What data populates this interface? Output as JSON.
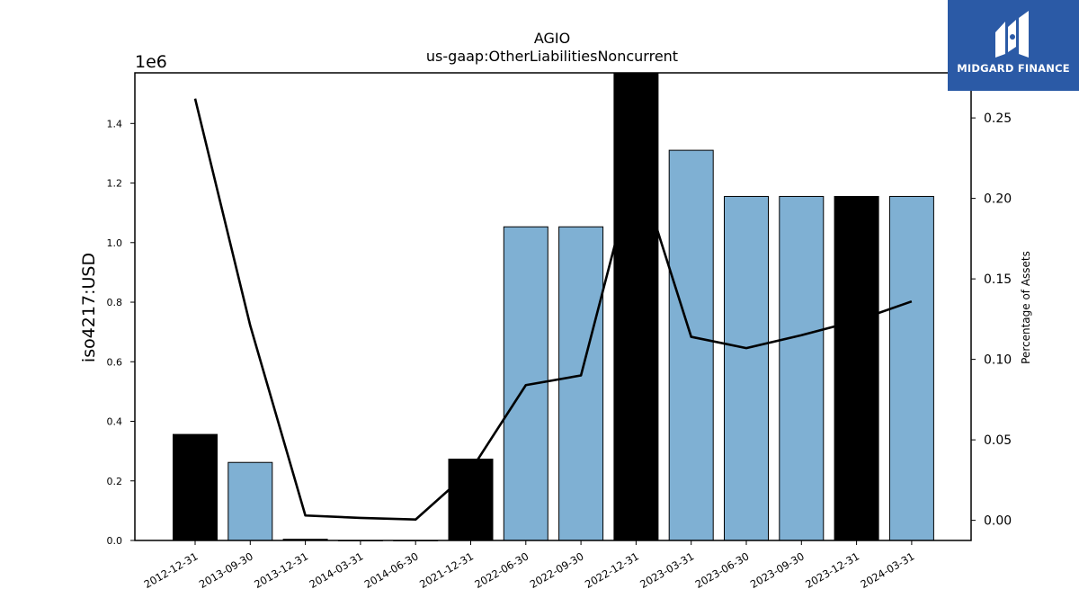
{
  "chart_data": {
    "type": "bar",
    "title": "AGIO",
    "subtitle": "us-gaap:OtherLiabilitiesNoncurrent",
    "ylabel": "iso4217:USD",
    "y2label": "Percentage of Assets",
    "y_offset_label": "1e6",
    "ylim": [
      0,
      1570000
    ],
    "y2lim": [
      -0.0125,
      0.278
    ],
    "yticks": [
      "0.0",
      "0.2",
      "0.4",
      "0.6",
      "0.8",
      "1.0",
      "1.2",
      "1.4"
    ],
    "y2ticks": [
      "0.00",
      "0.05",
      "0.10",
      "0.15",
      "0.20",
      "0.25"
    ],
    "categories": [
      "2012-12-31",
      "2013-09-30",
      "2013-12-31",
      "2014-03-31",
      "2014-06-30",
      "2021-12-31",
      "2022-06-30",
      "2022-09-30",
      "2022-12-31",
      "2023-03-31",
      "2023-06-30",
      "2023-09-30",
      "2023-12-31",
      "2024-03-31"
    ],
    "values": [
      356000,
      262000,
      4000,
      0,
      0,
      273000,
      1053000,
      1053000,
      1570000,
      1310000,
      1155000,
      1155000,
      1155000,
      1155000
    ],
    "highlight": [
      true,
      false,
      true,
      false,
      false,
      true,
      false,
      false,
      true,
      false,
      false,
      false,
      true,
      false
    ],
    "line_values": [
      0.262,
      0.121,
      0.003,
      0.0015,
      0.0005,
      0.031,
      0.084,
      0.09,
      0.222,
      0.114,
      0.107,
      0.115,
      0.124,
      0.136
    ],
    "colors": {
      "bar": "#7fb0d3",
      "highlight": "#000000",
      "line": "#000000"
    }
  },
  "logo": {
    "text": "MIDGARD FINANCE",
    "color": "#2b5aa6"
  }
}
